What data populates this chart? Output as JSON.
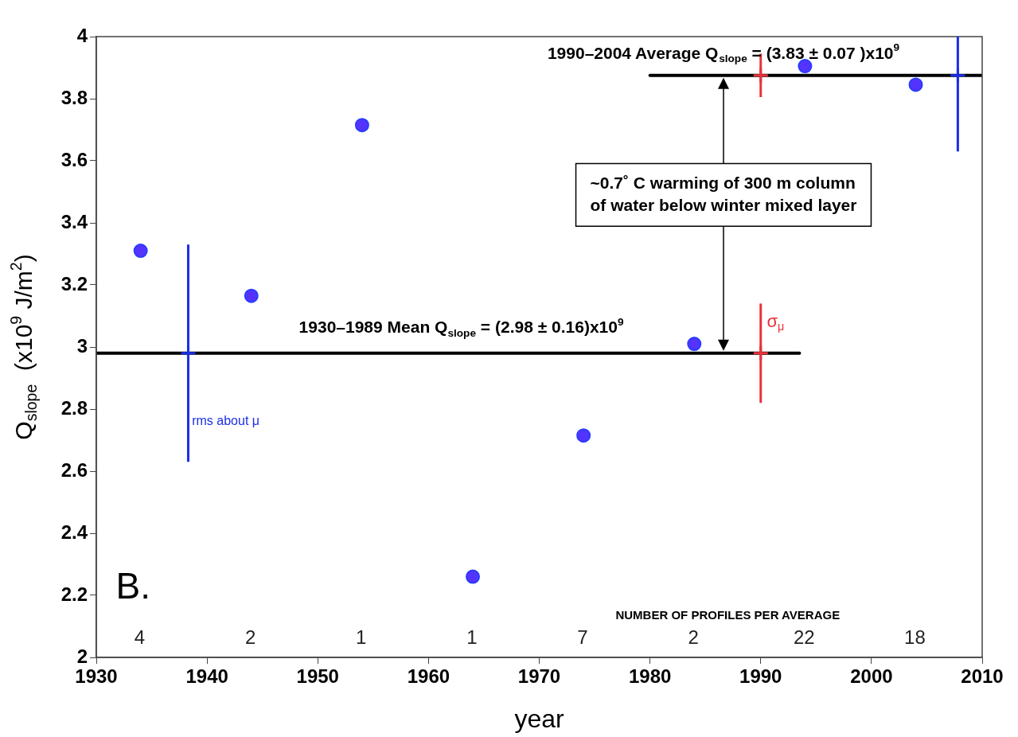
{
  "chart_data": {
    "type": "scatter",
    "xlabel": "year",
    "ylabel": "Q$_{slope}$  (x10$^{9}$ J/m$^{2}$)",
    "xlim": [
      1930,
      2010
    ],
    "xticks": [
      1930,
      1940,
      1950,
      1960,
      1970,
      1980,
      1990,
      2000,
      2010
    ],
    "ylim": [
      2,
      4
    ],
    "yticks": [
      2,
      2.2,
      2.4,
      2.6,
      2.8,
      3,
      3.2,
      3.4,
      3.6,
      3.8,
      4
    ],
    "legend": false,
    "grid": false,
    "series": [
      {
        "marker": "circle",
        "color": "#5533ff",
        "x": [
          1934,
          1944,
          1954,
          1964,
          1974,
          1984,
          1994,
          2004
        ],
        "values": [
          3.31,
          3.165,
          3.715,
          2.26,
          2.715,
          3.01,
          3.905,
          3.845
        ]
      },
      {
        "marker": "cross",
        "color": "#1a2ee6",
        "x": [
          1938.3,
          2007.8
        ],
        "values": [
          2.98,
          3.875
        ],
        "errors": [
          0.35,
          [
            3.63,
            4
          ]
        ]
      },
      {
        "marker": "cross",
        "color": "#e8323a",
        "x": [
          1990,
          1990
        ],
        "values": [
          2.98,
          3.875
        ],
        "errors": [
          0.16,
          0.07
        ]
      },
      {
        "type": "line",
        "marker": "none",
        "color": "#000000",
        "x": [
          1930,
          1993.5
        ],
        "values": [
          2.98,
          2.98
        ]
      },
      {
        "type": "line",
        "marker": "none",
        "color": "#000000",
        "x": [
          1980,
          2010
        ],
        "values": [
          3.875,
          3.875
        ]
      }
    ],
    "annotations": [
      "1990–2004 Average Q$_{slope}$ = (3.83 ± 0.07 )x10$^{9}$",
      "1930–1989 Mean Q$_{slope}$ = (2.98 ± 0.16)x10$^{9}$",
      "~0.7˚ C warming of 300 m column of water below winter mixed layer",
      "rms about μ",
      "σ$_{μ}$",
      "4",
      "2",
      "1",
      "1",
      "7",
      "2",
      "22",
      "18",
      "NUMBER OF PROFILES PER AVERAGE",
      "B."
    ]
  }
}
